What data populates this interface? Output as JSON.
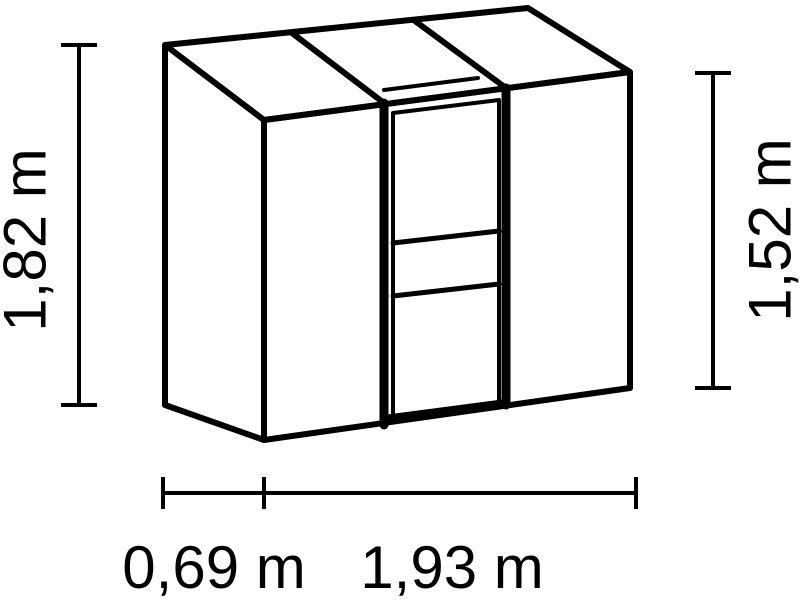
{
  "diagram": {
    "subject": "lean-to greenhouse with door",
    "dimensions": {
      "height_left": "1,82 m",
      "height_right": "1,52 m",
      "depth": "0,69 m",
      "width": "1,93 m"
    },
    "colors": {
      "line": "#000000",
      "background": "#ffffff"
    }
  }
}
